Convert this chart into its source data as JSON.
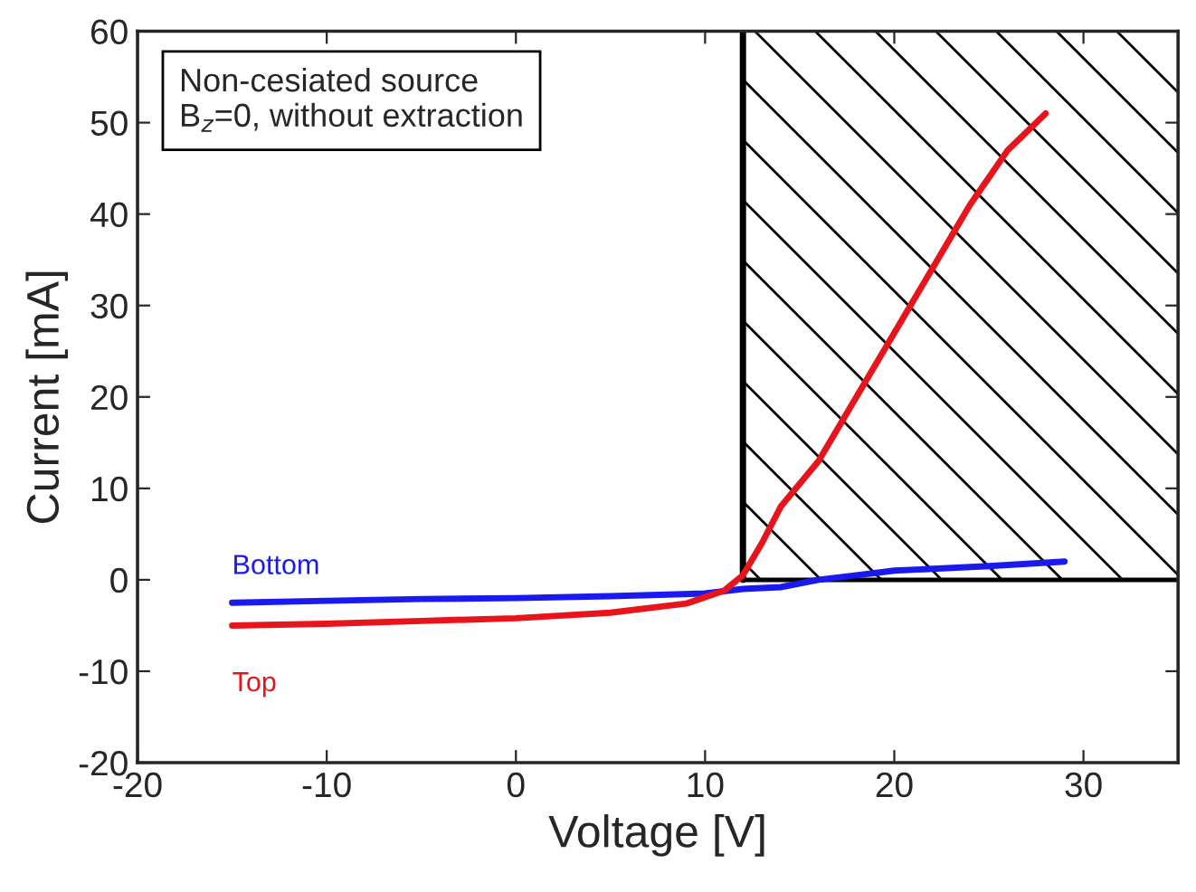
{
  "chart_data": {
    "type": "line",
    "xlabel": "Voltage [V]",
    "ylabel": "Current [mA]",
    "annotations": [
      "Non-cesiated source\nB$_{z}$=0, without extraction"
    ],
    "series": [
      {
        "name": "Bottom",
        "color": "#1a1aee",
        "x": [
          -15,
          -10,
          -5,
          0,
          5,
          10,
          12,
          14,
          16,
          18,
          20,
          25,
          29
        ],
        "values": [
          -2.5,
          -2.3,
          -2.1,
          -2.0,
          -1.8,
          -1.5,
          -1.0,
          -0.8,
          0,
          0.5,
          1.0,
          1.5,
          2.0
        ]
      },
      {
        "name": "Top",
        "color": "#e8141c",
        "x": [
          -15,
          -10,
          -5,
          0,
          5,
          9,
          11,
          12,
          13,
          14,
          16,
          18,
          20,
          22,
          24,
          25,
          26,
          27,
          28
        ],
        "values": [
          -5,
          -4.8,
          -4.5,
          -4.2,
          -3.6,
          -2.6,
          -1.2,
          0.5,
          4,
          8,
          13,
          20,
          27,
          34,
          41,
          44,
          47,
          49,
          51
        ]
      }
    ],
    "ref_lines": [
      {
        "axis": "x",
        "value": 12,
        "color": "#000000"
      },
      {
        "axis": "y",
        "value": 0,
        "color": "#000000"
      }
    ],
    "bands": [
      {
        "axis": "x",
        "from": 12,
        "to": 35
      }
    ],
    "xlim": [
      -20,
      35
    ],
    "xticks": [
      -20,
      -10,
      0,
      10,
      20,
      30
    ],
    "ylim": [
      -20,
      60
    ],
    "yticks": [
      -20,
      -10,
      0,
      10,
      20,
      30,
      40,
      50,
      60
    ],
    "grid": false,
    "legend": false
  }
}
